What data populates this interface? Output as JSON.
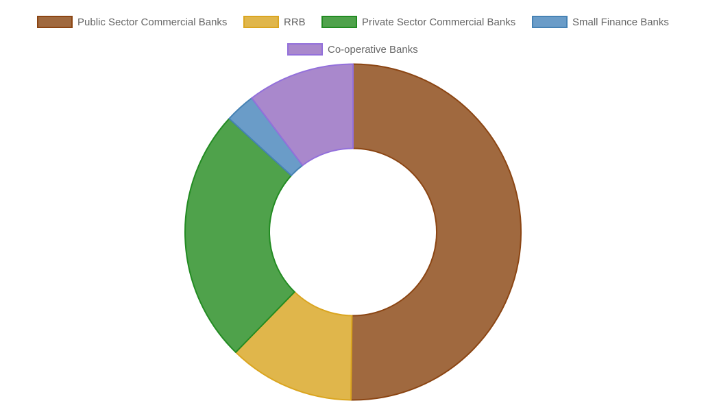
{
  "chart_data": {
    "type": "doughnut",
    "title": "",
    "legend_position": "top",
    "categories": [
      "Public Sector Commercial Banks",
      "RRB",
      "Private Sector Commercial Banks",
      "Small Finance Banks",
      "Co-operative Banks"
    ],
    "values": [
      50.2,
      12.1,
      24.5,
      2.9,
      10.3
    ],
    "fill_colors": [
      "#a0693f",
      "#e0b64b",
      "#4fa24b",
      "#6a9cc8",
      "#a988cc"
    ],
    "border_colors": [
      "#8b4513",
      "#daa520",
      "#228b22",
      "#4682b4",
      "#9370db"
    ]
  }
}
